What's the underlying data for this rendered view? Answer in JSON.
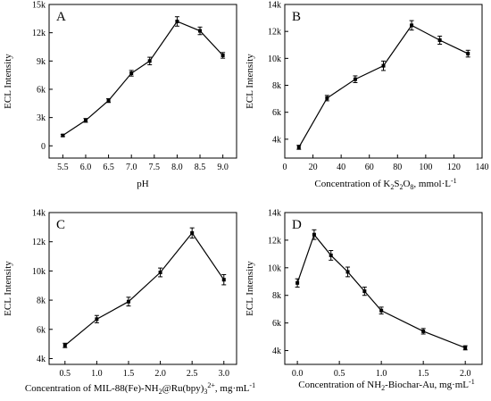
{
  "chart_data": [
    {
      "type": "line",
      "panel": "A",
      "x": [
        5.5,
        6.0,
        6.5,
        7.0,
        7.4,
        8.0,
        8.5,
        9.0
      ],
      "series": [
        {
          "values": [
            1100,
            2700,
            4800,
            7700,
            9000,
            13200,
            12200,
            9600
          ],
          "errors": [
            120,
            200,
            200,
            300,
            400,
            500,
            400,
            300
          ]
        }
      ],
      "xlabel": "pH",
      "ylabel": "ECL Intensity",
      "xlim": [
        5.2,
        9.3
      ],
      "ylim": [
        -1300,
        15000
      ],
      "xticks": [
        5.5,
        6.0,
        6.5,
        7.0,
        7.5,
        8.0,
        8.5,
        9.0
      ],
      "xtick_labels": [
        "5.5",
        "6.0",
        "6.5",
        "7.0",
        "7.5",
        "8.0",
        "8.5",
        "9.0"
      ],
      "yticks": [
        0,
        3000,
        6000,
        9000,
        12000,
        15000
      ],
      "ytick_labels": [
        "0",
        "3k",
        "6k",
        "9k",
        "12k",
        "15k"
      ],
      "grid": false
    },
    {
      "type": "line",
      "panel": "B",
      "x": [
        10,
        30,
        50,
        70,
        90,
        110,
        130
      ],
      "series": [
        {
          "values": [
            3400,
            7050,
            8450,
            9450,
            12450,
            11350,
            10350
          ],
          "errors": [
            150,
            200,
            250,
            350,
            350,
            300,
            250
          ]
        }
      ],
      "xlabel": "Concentration of K₂S₂O₈, mmol·L⁻¹",
      "ylabel": "ECL Intensity",
      "xlim": [
        0,
        140
      ],
      "ylim": [
        2600,
        14000
      ],
      "xticks": [
        0,
        20,
        40,
        60,
        80,
        100,
        120,
        140
      ],
      "xtick_labels": [
        "0",
        "20",
        "40",
        "60",
        "80",
        "100",
        "120",
        "140"
      ],
      "yticks": [
        4000,
        6000,
        8000,
        10000,
        12000,
        14000
      ],
      "ytick_labels": [
        "4k",
        "6k",
        "8k",
        "10k",
        "12k",
        "14k"
      ],
      "grid": false
    },
    {
      "type": "line",
      "panel": "C",
      "x": [
        0.5,
        1.0,
        1.5,
        2.0,
        2.5,
        3.0
      ],
      "series": [
        {
          "values": [
            4900,
            6700,
            7900,
            9900,
            12600,
            9400
          ],
          "errors": [
            150,
            250,
            300,
            300,
            350,
            350
          ]
        }
      ],
      "xlabel": "Concentration of MIL-88(Fe)-NH₂@Ru(bpy)₃²⁺, mg·mL⁻¹",
      "ylabel": "ECL Intensity",
      "xlim": [
        0.25,
        3.2
      ],
      "ylim": [
        3600,
        14000
      ],
      "xticks": [
        0.5,
        1.0,
        1.5,
        2.0,
        2.5,
        3.0
      ],
      "xtick_labels": [
        "0.5",
        "1.0",
        "1.5",
        "2.0",
        "2.5",
        "3.0"
      ],
      "yticks": [
        4000,
        6000,
        8000,
        10000,
        12000,
        14000
      ],
      "ytick_labels": [
        "4k",
        "6k",
        "8k",
        "10k",
        "12k",
        "14k"
      ],
      "grid": false
    },
    {
      "type": "line",
      "panel": "D",
      "x": [
        0.0,
        0.2,
        0.4,
        0.6,
        0.8,
        1.0,
        1.5,
        2.0
      ],
      "series": [
        {
          "values": [
            8900,
            12400,
            10900,
            9700,
            8300,
            6900,
            5400,
            4200
          ],
          "errors": [
            300,
            350,
            350,
            350,
            300,
            250,
            200,
            150
          ]
        }
      ],
      "xlabel": "Concentration of NH₂-Biochar-Au, mg·mL⁻¹",
      "ylabel": "ECL Intensity",
      "xlim": [
        -0.15,
        2.2
      ],
      "ylim": [
        3000,
        14000
      ],
      "xticks": [
        0.0,
        0.5,
        1.0,
        1.5,
        2.0
      ],
      "xtick_labels": [
        "0.0",
        "0.5",
        "1.0",
        "1.5",
        "2.0"
      ],
      "yticks": [
        4000,
        6000,
        8000,
        10000,
        12000,
        14000
      ],
      "ytick_labels": [
        "4k",
        "6k",
        "8k",
        "10k",
        "12k",
        "14k"
      ],
      "grid": false
    }
  ]
}
